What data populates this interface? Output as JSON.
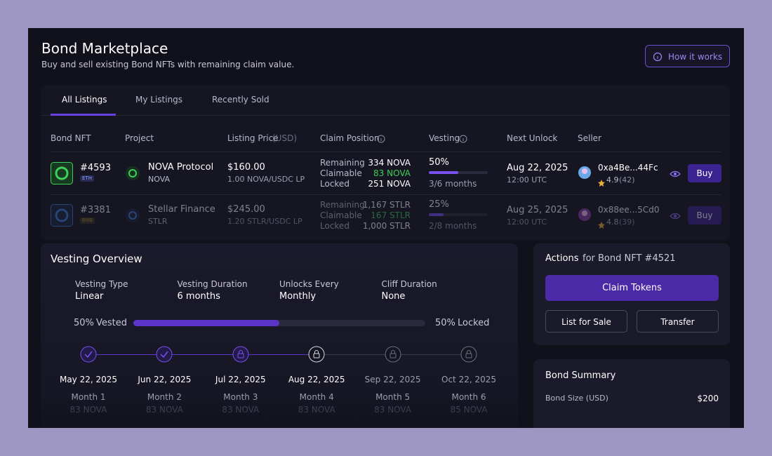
{
  "header": {
    "title": "Bond Marketplace",
    "subtitle": "Buy and sell existing Bond NFTs with remaining claim value.",
    "help_button": "How it works"
  },
  "tabs": [
    "All Listings",
    "My Listings",
    "Recently Sold"
  ],
  "table": {
    "columns": [
      {
        "label": "Bond NFT"
      },
      {
        "label": "Project"
      },
      {
        "label": "Listing Price",
        "unit": "(USD)"
      },
      {
        "label": "Claim Position"
      },
      {
        "label": "Vesting"
      },
      {
        "label": "Next Unlock"
      },
      {
        "label": "Seller"
      }
    ],
    "rows": [
      {
        "id": "#4593",
        "chain": "ETH",
        "project": "NOVA Protocol",
        "ticker": "NOVA",
        "price": "$160.00",
        "pair": "1.00 NOVA/USDC LP",
        "claim": [
          {
            "label": "Remaining",
            "value": "334 NOVA"
          },
          {
            "label": "Claimable",
            "value": "83 NOVA"
          },
          {
            "label": "Locked",
            "value": "251 NOVA"
          }
        ],
        "vesting": "50%",
        "months": "3/6 months",
        "next_unlock": "Aug 22, 2025",
        "time": "12:00 UTC",
        "seller": "0xa4Be...44Fc",
        "rating": "4.9",
        "reviews": "(42)",
        "button": "Buy"
      },
      {
        "id": "#3381",
        "chain": "BNB",
        "project": "Stellar Finance",
        "ticker": "STLR",
        "price": "$245.00",
        "pair": "1.20 STLR/USDC LP",
        "claim": [
          {
            "label": "Remaining",
            "value": "1,167 STLR"
          },
          {
            "label": "Claimable",
            "value": "167 STLR"
          },
          {
            "label": "Locked",
            "value": "1,000 STLR"
          }
        ],
        "vesting": "25%",
        "months": "2/8 months",
        "next_unlock": "Aug 25, 2025",
        "time": "12:00 UTC",
        "seller": "0x88ee...5Cd0",
        "rating": "4.8",
        "reviews": "(39)",
        "button": "Buy"
      }
    ]
  },
  "vesting_overview": {
    "title": "Vesting Overview",
    "details": [
      {
        "label": "Vesting Type",
        "value": "Linear"
      },
      {
        "label": "Vesting Duration",
        "value": "6 months"
      },
      {
        "label": "Unlocks Every",
        "value": "Monthly"
      },
      {
        "label": "Cliff Duration",
        "value": "None"
      }
    ],
    "progress": {
      "vested_percent": "50%",
      "vested_label": "Vested",
      "locked_percent": "50%",
      "locked_label": "Locked"
    },
    "timeline": [
      {
        "date": "May 22, 2025",
        "month": "Month 1",
        "amount": "83 NOVA"
      },
      {
        "date": "Jun 22, 2025",
        "month": "Month 2",
        "amount": "83 NOVA"
      },
      {
        "date": "Jul 22, 2025",
        "month": "Month 3",
        "amount": "83 NOVA"
      },
      {
        "date": "Aug 22, 2025",
        "month": "Month 4",
        "amount": "83 NOVA"
      },
      {
        "date": "Sep 22, 2025",
        "month": "Month 5",
        "amount": "83 NOVA"
      },
      {
        "date": "Oct 22, 2025",
        "month": "Month 6",
        "amount": "85 NOVA"
      }
    ]
  },
  "actions": {
    "title": "Actions",
    "subtitle": "for Bond NFT #4521",
    "primary": "Claim Tokens",
    "secondary": [
      "List for Sale",
      "Transfer"
    ]
  },
  "bond_summary": {
    "title": "Bond Summary",
    "rows": [
      {
        "label": "Bond Size (USD)",
        "value": "$200"
      }
    ]
  }
}
